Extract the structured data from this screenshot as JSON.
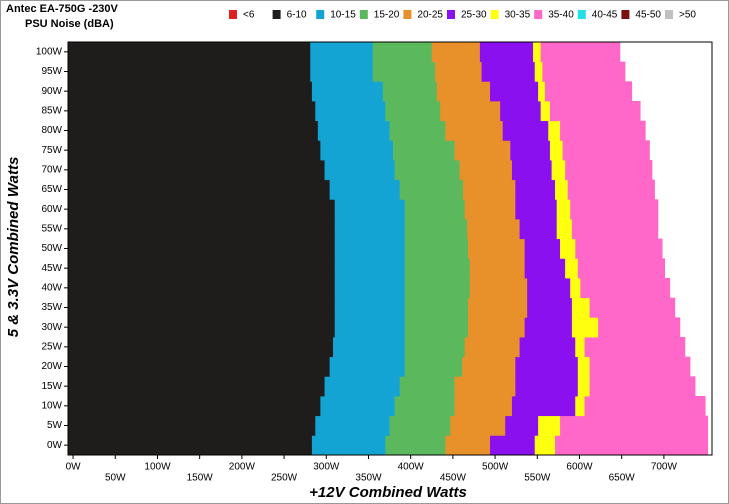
{
  "chart_data": {
    "type": "heatmap",
    "title": "Antec EA-750G -230V",
    "subtitle": "PSU Noise (dBA)",
    "x_label": "+12V Combined Watts",
    "y_label": "5 & 3.3V Combined Watts",
    "xlim": [
      -6,
      757
    ],
    "ylim": [
      -2.5,
      102.5
    ],
    "xticks": [
      {
        "value": 0,
        "label": "0W"
      },
      {
        "value": 50,
        "label": "50W"
      },
      {
        "value": 100,
        "label": "100W"
      },
      {
        "value": 150,
        "label": "150W"
      },
      {
        "value": 200,
        "label": "200W"
      },
      {
        "value": 250,
        "label": "250W"
      },
      {
        "value": 300,
        "label": "300W"
      },
      {
        "value": 350,
        "label": "350W"
      },
      {
        "value": 400,
        "label": "400W"
      },
      {
        "value": 450,
        "label": "450W"
      },
      {
        "value": 500,
        "label": "500W"
      },
      {
        "value": 550,
        "label": "550W"
      },
      {
        "value": 600,
        "label": "600W"
      },
      {
        "value": 650,
        "label": "650W"
      },
      {
        "value": 700,
        "label": "700W"
      }
    ],
    "yticks": [
      {
        "value": 0,
        "label": "0W"
      },
      {
        "value": 5,
        "label": "5W"
      },
      {
        "value": 10,
        "label": "10W"
      },
      {
        "value": 15,
        "label": "15W"
      },
      {
        "value": 20,
        "label": "20W"
      },
      {
        "value": 25,
        "label": "25W"
      },
      {
        "value": 30,
        "label": "30W"
      },
      {
        "value": 35,
        "label": "35W"
      },
      {
        "value": 40,
        "label": "40W"
      },
      {
        "value": 45,
        "label": "45W"
      },
      {
        "value": 50,
        "label": "50W"
      },
      {
        "value": 55,
        "label": "55W"
      },
      {
        "value": 60,
        "label": "60W"
      },
      {
        "value": 65,
        "label": "65W"
      },
      {
        "value": 70,
        "label": "70W"
      },
      {
        "value": 75,
        "label": "75W"
      },
      {
        "value": 80,
        "label": "80W"
      },
      {
        "value": 85,
        "label": "85W"
      },
      {
        "value": 90,
        "label": "90W"
      },
      {
        "value": 95,
        "label": "95W"
      },
      {
        "value": 100,
        "label": "100W"
      }
    ],
    "y": [
      0,
      5,
      10,
      15,
      20,
      25,
      30,
      35,
      40,
      45,
      50,
      55,
      60,
      65,
      70,
      75,
      80,
      85,
      90,
      95,
      100
    ],
    "series": [
      {
        "name": "<6",
        "color": "#e02020"
      },
      {
        "name": "6-10",
        "color": "#1f1c1c",
        "values": [
          283,
          287,
          293,
          298,
          304,
          308,
          310,
          310,
          310,
          310,
          310,
          310,
          310,
          304,
          298,
          293,
          290,
          287,
          283,
          281,
          281
        ]
      },
      {
        "name": "10-15",
        "color": "#14a4d4",
        "values": [
          370,
          375,
          381,
          387,
          393,
          393,
          393,
          393,
          393,
          393,
          393,
          393,
          393,
          387,
          381,
          379,
          375,
          370,
          367,
          355,
          355
        ]
      },
      {
        "name": "15-20",
        "color": "#5cb85c",
        "values": [
          441,
          447,
          452,
          452,
          461,
          464,
          468,
          468,
          470,
          470,
          468,
          467,
          464,
          462,
          458,
          452,
          441,
          435,
          431,
          429,
          425
        ]
      },
      {
        "name": "20-25",
        "color": "#e8902a",
        "values": [
          494,
          512,
          520,
          524,
          524,
          529,
          535,
          538,
          538,
          535,
          535,
          529,
          524,
          524,
          520,
          518,
          509,
          506,
          494,
          484,
          482
        ]
      },
      {
        "name": "25-30",
        "color": "#8a10f0",
        "values": [
          547,
          551,
          595,
          598,
          598,
          595,
          591,
          591,
          589,
          583,
          577,
          573,
          573,
          571,
          567,
          565,
          563,
          554,
          551,
          547,
          545
        ]
      },
      {
        "name": "30-35",
        "color": "#ffff10",
        "values": [
          571,
          577,
          606,
          612,
          612,
          606,
          622,
          612,
          601,
          598,
          595,
          591,
          589,
          586,
          583,
          580,
          577,
          565,
          559,
          556,
          554
        ]
      },
      {
        "name": "35-40",
        "color": "#ff68c8",
        "values": [
          752,
          752,
          749,
          737,
          731,
          725,
          719,
          713,
          707,
          701,
          698,
          693,
          693,
          689,
          686,
          683,
          678,
          672,
          662,
          654,
          648
        ]
      },
      {
        "name": "40-45",
        "color": "#20e0e8"
      },
      {
        "name": "45-50",
        "color": "#7a1010"
      },
      {
        "name": ">50",
        "color": "#c0c0c0"
      }
    ]
  }
}
